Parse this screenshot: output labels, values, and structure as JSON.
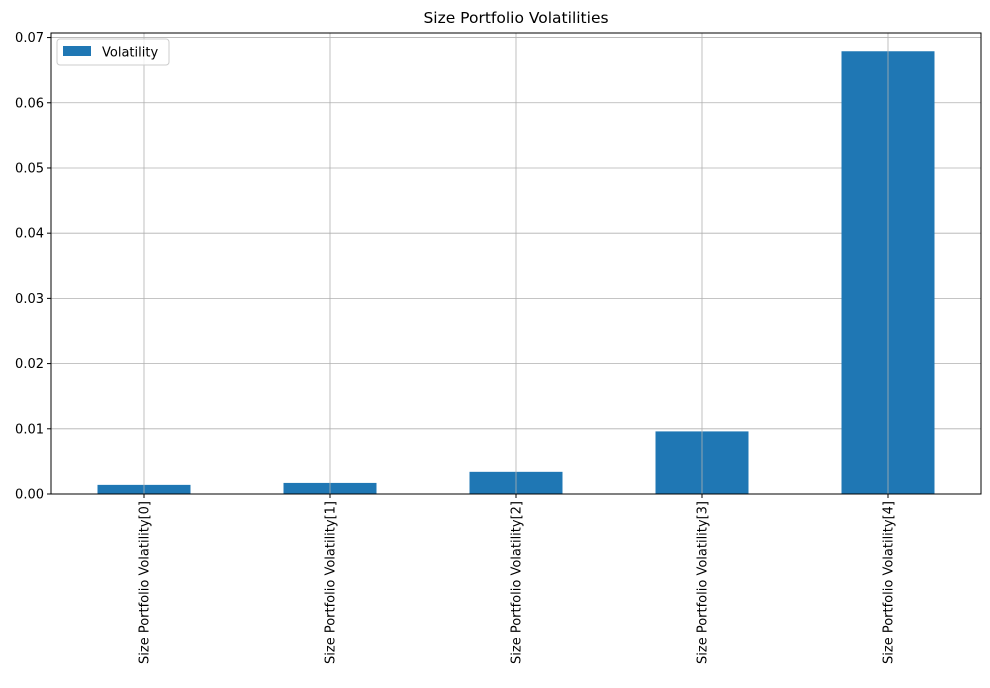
{
  "chart_data": {
    "type": "bar",
    "title": "Size Portfolio Volatilities",
    "xlabel": "",
    "ylabel": "",
    "categories": [
      "Size Portfolio Volatility[0]",
      "Size Portfolio Volatility[1]",
      "Size Portfolio Volatility[2]",
      "Size Portfolio Volatility[3]",
      "Size Portfolio Volatility[4]"
    ],
    "series": [
      {
        "name": "Volatility",
        "values": [
          0.0014,
          0.0017,
          0.0034,
          0.0096,
          0.0679
        ],
        "color": "#1f77b4"
      }
    ],
    "ylim": [
      0,
      0.0707
    ],
    "yticks": [
      "0.00",
      "0.01",
      "0.02",
      "0.03",
      "0.04",
      "0.05",
      "0.06",
      "0.07"
    ],
    "grid": true,
    "legend_position": "top-left"
  }
}
